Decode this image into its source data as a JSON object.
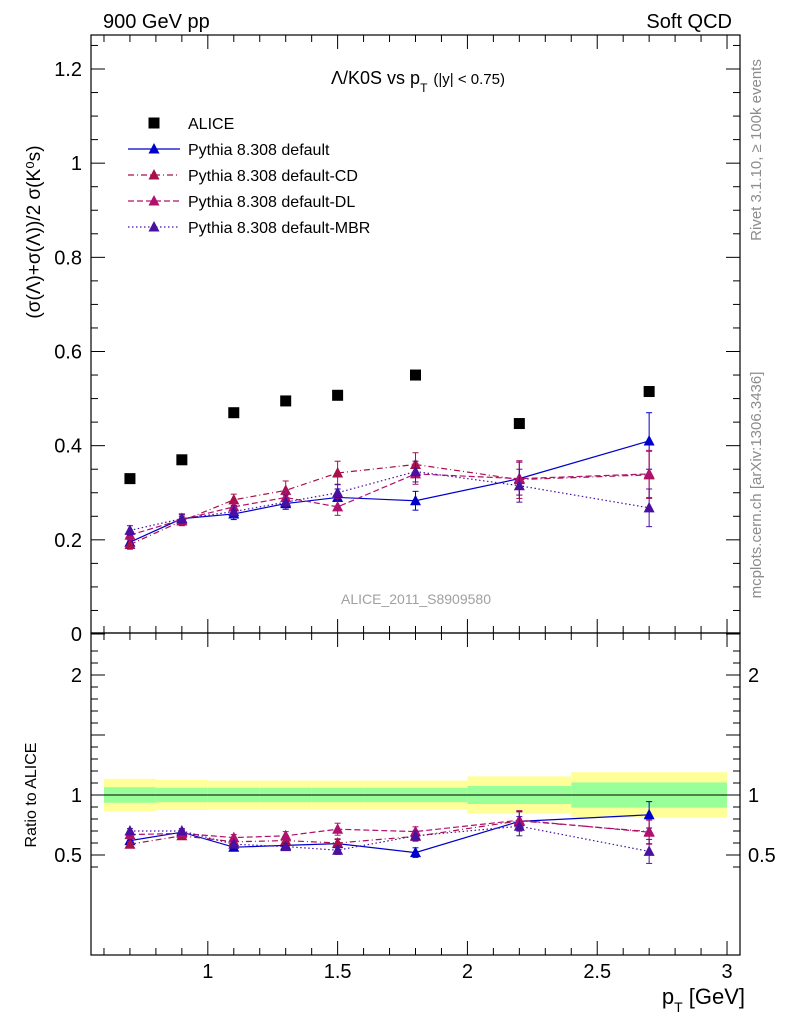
{
  "header": {
    "left": "900 GeV pp",
    "right": "Soft QCD"
  },
  "side_labels": {
    "rivet": "Rivet 3.1.10, ≥ 100k events",
    "mcplots": "mcplots.cern.ch [arXiv:1306.3436]"
  },
  "chart_data": [
    {
      "type": "scatter",
      "title": "Λ/K0S vs p_T (|y| < 0.75)",
      "title_main": "Λ/K0S vs p",
      "title_sub": "T",
      "title_cut": "(|y| < 0.75)",
      "ylabel": "(σ(Λ)+σ(Λ))/2 σ(K⁰s)",
      "watermark": "ALICE_2011_S8909580",
      "xlim": [
        0.55,
        3.05
      ],
      "ylim": [
        0,
        1.28
      ],
      "yticks": [
        0,
        0.2,
        0.4,
        0.6,
        0.8,
        1,
        1.2
      ],
      "ytick_labels": [
        "0",
        "0.2",
        "0.4",
        "0.6",
        "0.8",
        "1",
        "1.2"
      ],
      "x": [
        0.7,
        0.9,
        1.1,
        1.3,
        1.5,
        1.8,
        2.2,
        2.7
      ],
      "series": [
        {
          "name": "ALICE",
          "color": "#000000",
          "marker": "square",
          "dash": "none",
          "values": [
            0.33,
            0.37,
            0.47,
            0.495,
            0.507,
            0.55,
            0.447,
            0.515
          ]
        },
        {
          "name": "Pythia 8.308 default",
          "color": "#0000cc",
          "marker": "triangle",
          "dash": "solid",
          "values": [
            0.195,
            0.245,
            0.255,
            0.277,
            0.29,
            0.283,
            0.33,
            0.41
          ],
          "errors": [
            0.01,
            0.01,
            0.012,
            0.012,
            0.018,
            0.02,
            0.035,
            0.06
          ]
        },
        {
          "name": "Pythia 8.308 default-CD",
          "color": "#a8104b",
          "marker": "triangle",
          "dash": "dashdot",
          "values": [
            0.19,
            0.24,
            0.285,
            0.305,
            0.342,
            0.36,
            0.328,
            0.338
          ],
          "errors": [
            0.01,
            0.01,
            0.012,
            0.02,
            0.025,
            0.025,
            0.04,
            0.05
          ]
        },
        {
          "name": "Pythia 8.308 default-DL",
          "color": "#b0106e",
          "marker": "triangle",
          "dash": "dashed",
          "values": [
            0.21,
            0.243,
            0.27,
            0.29,
            0.27,
            0.34,
            0.33,
            0.34
          ],
          "errors": [
            0.01,
            0.01,
            0.012,
            0.015,
            0.018,
            0.022,
            0.035,
            0.05
          ]
        },
        {
          "name": "Pythia 8.308 default-MBR",
          "color": "#4a10a0",
          "marker": "triangle",
          "dash": "dotted",
          "values": [
            0.22,
            0.245,
            0.26,
            0.28,
            0.3,
            0.345,
            0.315,
            0.268
          ],
          "errors": [
            0.01,
            0.01,
            0.012,
            0.015,
            0.018,
            0.022,
            0.035,
            0.04
          ]
        }
      ]
    },
    {
      "type": "scatter",
      "ylabel": "Ratio to ALICE",
      "xlabel": "p_T [GeV]",
      "xlabel_main": "p",
      "xlabel_sub": "T",
      "xlabel_unit": " [GeV]",
      "xlim": [
        0.55,
        3.05
      ],
      "ylim": [
        0.35,
        2.3
      ],
      "yticks": [
        0.5,
        1,
        2
      ],
      "ytick_labels": [
        "0.5",
        "1",
        "2"
      ],
      "xticks": [
        1,
        1.5,
        2,
        2.5,
        3
      ],
      "xtick_labels": [
        "1",
        "1.5",
        "2",
        "2.5",
        "3"
      ],
      "x": [
        0.7,
        0.9,
        1.1,
        1.3,
        1.5,
        1.8,
        2.2,
        2.7
      ],
      "reference_bands": {
        "bin_edges": [
          0.6,
          0.8,
          1.0,
          1.2,
          1.4,
          1.6,
          2.0,
          2.4,
          3.0
        ],
        "stat_half": [
          0.065,
          0.06,
          0.06,
          0.06,
          0.06,
          0.06,
          0.075,
          0.105
        ],
        "total_half": [
          0.135,
          0.125,
          0.12,
          0.12,
          0.12,
          0.12,
          0.155,
          0.19
        ],
        "stat_color": "#99ff99",
        "total_color": "#ffff99"
      },
      "series": [
        {
          "name": "Pythia 8.308 default",
          "color": "#0000cc",
          "dash": "solid",
          "values": [
            0.62,
            0.69,
            0.565,
            0.58,
            0.595,
            0.52,
            0.78,
            0.835
          ],
          "errors": [
            0.02,
            0.02,
            0.025,
            0.025,
            0.035,
            0.04,
            0.08,
            0.11
          ]
        },
        {
          "name": "Pythia 8.308 default-CD",
          "color": "#a8104b",
          "dash": "dashdot",
          "values": [
            0.59,
            0.66,
            0.61,
            0.62,
            0.6,
            0.655,
            0.785,
            0.695
          ],
          "errors": [
            0.02,
            0.02,
            0.025,
            0.03,
            0.035,
            0.04,
            0.08,
            0.1
          ]
        },
        {
          "name": "Pythia 8.308 default-DL",
          "color": "#b0106e",
          "dash": "dashed",
          "values": [
            0.67,
            0.68,
            0.645,
            0.66,
            0.715,
            0.695,
            0.79,
            0.69
          ],
          "errors": [
            0.02,
            0.02,
            0.025,
            0.035,
            0.05,
            0.04,
            0.08,
            0.1
          ]
        },
        {
          "name": "Pythia 8.308 default-MBR",
          "color": "#4a10a0",
          "dash": "dotted",
          "values": [
            0.7,
            0.7,
            0.59,
            0.57,
            0.54,
            0.66,
            0.74,
            0.53
          ],
          "errors": [
            0.02,
            0.02,
            0.025,
            0.025,
            0.035,
            0.04,
            0.08,
            0.1
          ]
        }
      ]
    }
  ]
}
